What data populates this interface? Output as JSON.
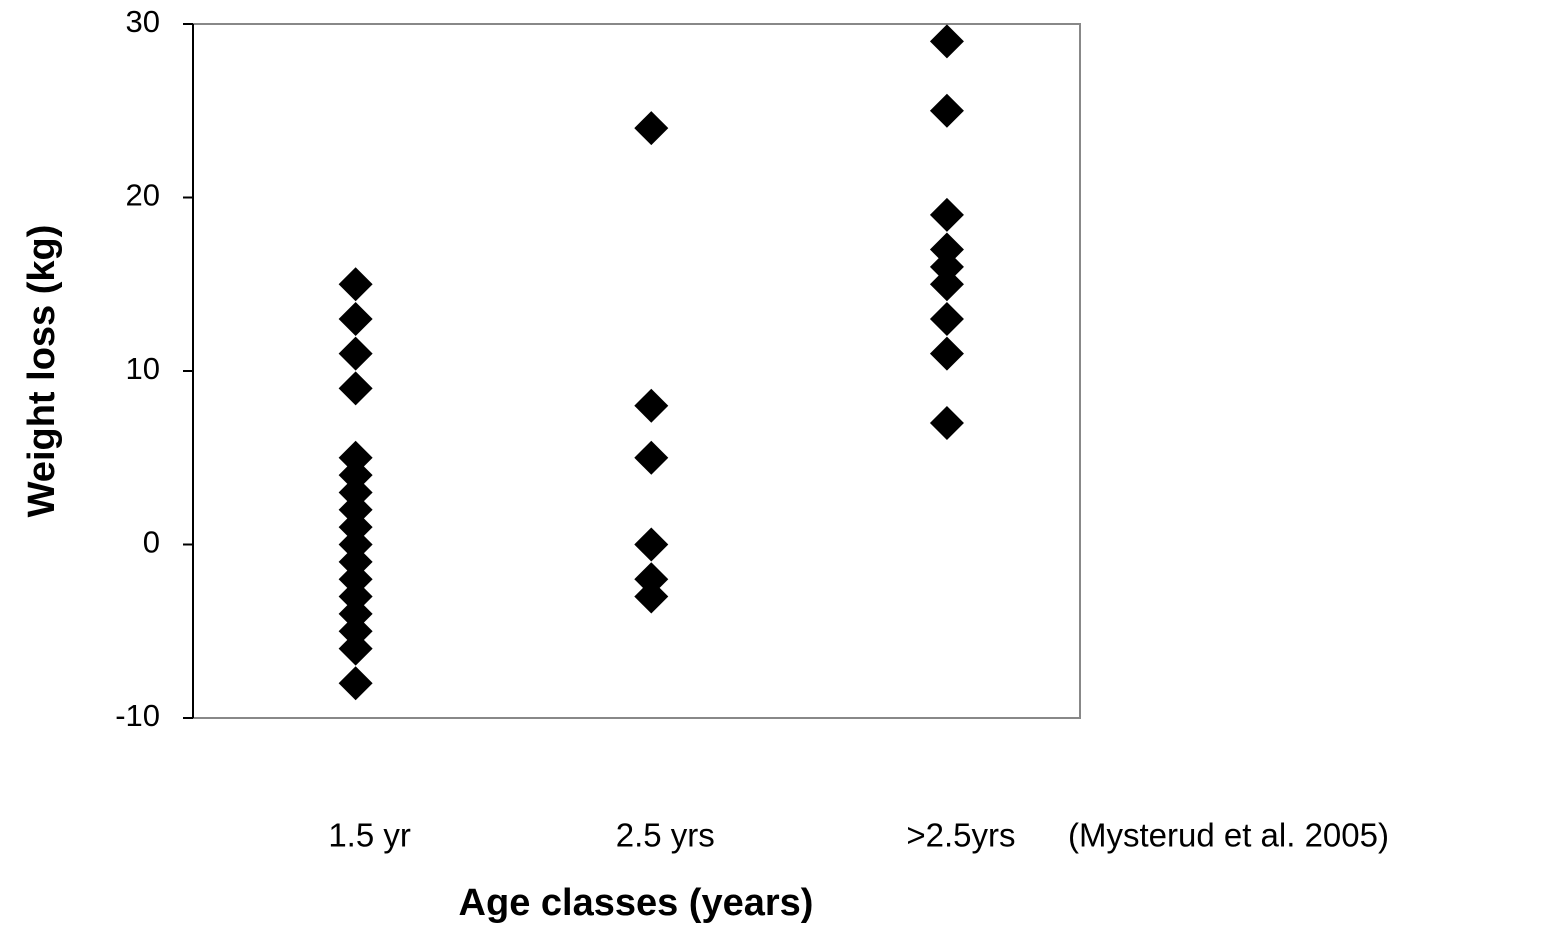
{
  "chart_data": {
    "type": "scatter",
    "xlabel": "Age classes (years)",
    "ylabel": "Weight loss (kg)",
    "annotation": "(Mysterud et al. 2005)",
    "categories": [
      "1.5 yr",
      "2.5 yrs",
      ">2.5yrs"
    ],
    "values": [
      [
        15,
        13,
        11,
        9,
        5,
        4,
        3,
        2,
        1,
        0,
        -1,
        -2,
        -3,
        -4,
        -5,
        -6,
        -8
      ],
      [
        24,
        8,
        5,
        0,
        -2,
        -3
      ],
      [
        29,
        25,
        19,
        17,
        16,
        15,
        13,
        11,
        7
      ]
    ],
    "color": "#000000",
    "marker": "diamond",
    "ylim": [
      -10,
      30
    ],
    "yticks": [
      -10,
      0,
      10,
      20,
      30
    ],
    "grid": false
  }
}
